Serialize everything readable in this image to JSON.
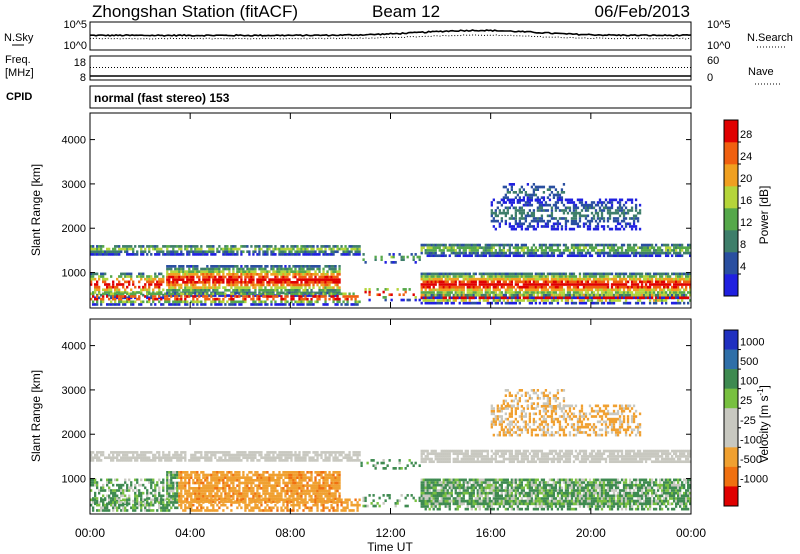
{
  "header": {
    "title": "Zhongshan Station (fitACF)",
    "beam": "Beam 12",
    "date": "06/Feb/2013"
  },
  "noise_panel": {
    "left_label": "N.Sky",
    "right_label": "N.Search",
    "left_ticks": [
      "10^5",
      "10^0"
    ],
    "right_ticks": [
      "10^5",
      "10^0"
    ]
  },
  "freq_panel": {
    "left_label_1": "Freq.",
    "left_label_2": "[MHz]",
    "left_ticks": [
      "18",
      "8"
    ],
    "right_label": "Nave",
    "right_ticks": [
      "60",
      "0"
    ]
  },
  "cpid_panel": {
    "label": "CPID",
    "text": "normal (fast stereo) 153"
  },
  "chart_data": [
    {
      "type": "heatmap",
      "name": "power",
      "ylabel": "Slant Range [km]",
      "ylim": [
        200,
        4600
      ],
      "yticks": [
        "1000",
        "2000",
        "3000",
        "4000"
      ],
      "xlim": [
        0,
        24
      ],
      "colorbar_label": "Power [dB]",
      "colorbar_ticks": [
        "4",
        "8",
        "12",
        "16",
        "20",
        "24",
        "28"
      ],
      "colors": [
        "#2020e0",
        "#2a4fa0",
        "#3e7e6a",
        "#55a84a",
        "#b5d53a",
        "#f0a020",
        "#f06010",
        "#e00000"
      ]
    },
    {
      "type": "heatmap",
      "name": "velocity",
      "ylabel": "Slant Range [km]",
      "ylim": [
        200,
        4600
      ],
      "yticks": [
        "1000",
        "2000",
        "3000",
        "4000"
      ],
      "xlim": [
        0,
        24
      ],
      "colorbar_label": "Velocity [m s",
      "colorbar_unit_sup": "-1",
      "colorbar_unit_end": "]",
      "colorbar_ticks": [
        "1000",
        "500",
        "100",
        "25",
        "-25",
        "-100",
        "-500",
        "-1000"
      ],
      "colors": [
        "#2030c0",
        "#2f6fa8",
        "#3e8a50",
        "#78c040",
        "#c8c8c0",
        "#c8c8c0",
        "#f0a030",
        "#f07010",
        "#e00000"
      ]
    }
  ],
  "time_axis": {
    "label": "Time UT",
    "ticks": [
      "00:00",
      "04:00",
      "08:00",
      "12:00",
      "16:00",
      "20:00",
      "00:00"
    ]
  }
}
